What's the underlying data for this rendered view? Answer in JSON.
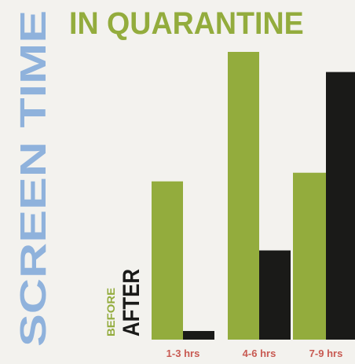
{
  "title_vertical": "SCREEN TIME",
  "title_horizontal": "IN QUARANTINE",
  "colors": {
    "title_blue": "#8fb2dc",
    "title_green": "#93ac3d",
    "before": "#93ac3d",
    "after": "#1a1a18",
    "tick": "#c85a52",
    "background": "#f3f2ee"
  },
  "legend": {
    "before_label": "BEFORE",
    "after_label": "AFTER"
  },
  "chart_data": {
    "type": "bar",
    "categories": [
      "1-3 hrs",
      "4-6 hrs",
      "7-9 hrs"
    ],
    "series": [
      {
        "name": "BEFORE",
        "values": [
          55,
          100,
          58
        ]
      },
      {
        "name": "AFTER",
        "values": [
          3,
          31,
          93
        ]
      }
    ],
    "title": "IN QUARANTINE",
    "xlabel": "",
    "ylabel": "",
    "ylim": [
      0,
      100
    ],
    "grid": false
  }
}
